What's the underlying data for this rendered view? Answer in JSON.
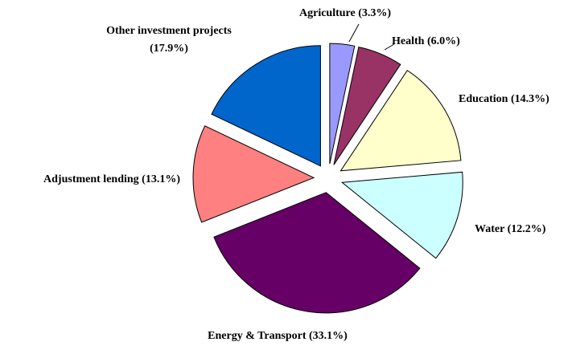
{
  "chart_data": {
    "type": "pie",
    "categories": [
      "Agriculture",
      "Health",
      "Education",
      "Water",
      "Energy & Transport",
      "Adjustment lending",
      "Other investment projects"
    ],
    "values": [
      3.3,
      6.0,
      14.3,
      12.2,
      33.1,
      13.1,
      17.9
    ],
    "value_labels": [
      "(3.3%)",
      "(6.0%)",
      "(14.3%)",
      "(12.2%)",
      "(33.1%)",
      "(13.1%)",
      "(17.9%)"
    ],
    "colors": [
      "#9999ff",
      "#993366",
      "#ffffcc",
      "#ccffff",
      "#660066",
      "#ff8080",
      "#0066cc"
    ]
  }
}
